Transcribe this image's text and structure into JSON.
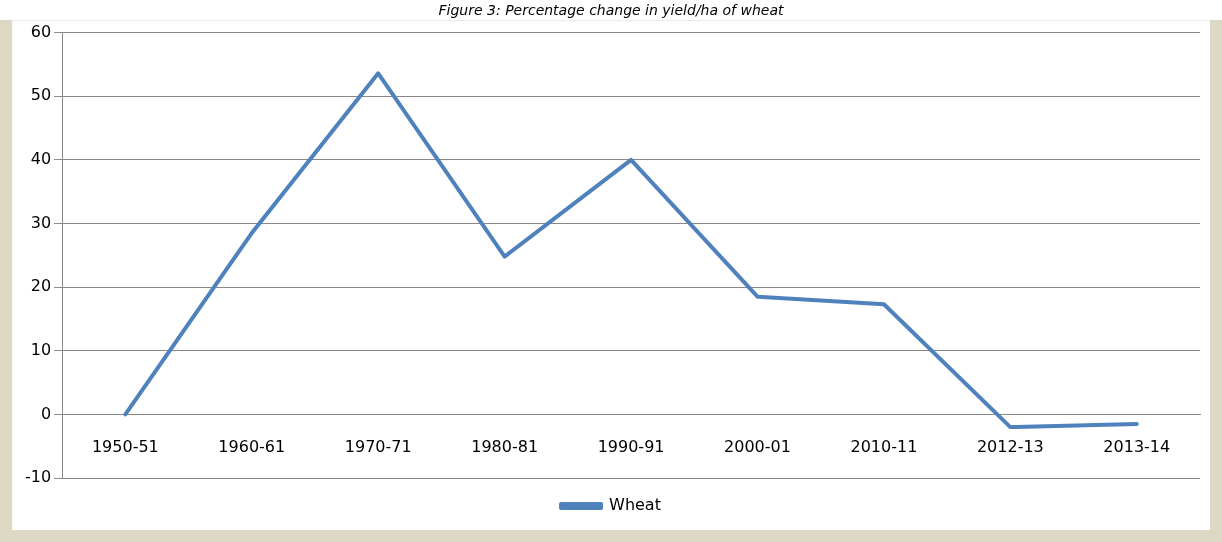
{
  "chart_data": {
    "type": "line",
    "title": "Figure 3: Percentage change in yield/ha of wheat",
    "categories": [
      "1950-51",
      "1960-61",
      "1970-71",
      "1980-81",
      "1990-91",
      "2000-01",
      "2010-11",
      "2012-13",
      "2013-14"
    ],
    "series": [
      {
        "name": "Wheat",
        "color": "#4f81bd",
        "values": [
          0,
          28.5,
          53.6,
          24.8,
          40,
          18.5,
          17.3,
          -2,
          -1.5
        ]
      }
    ],
    "ylim": [
      -10,
      60
    ],
    "yticks": [
      -10,
      0,
      10,
      20,
      30,
      40,
      50,
      60
    ],
    "grid": "y",
    "legend": "bottom",
    "marker": "none",
    "line_style": "solid"
  }
}
